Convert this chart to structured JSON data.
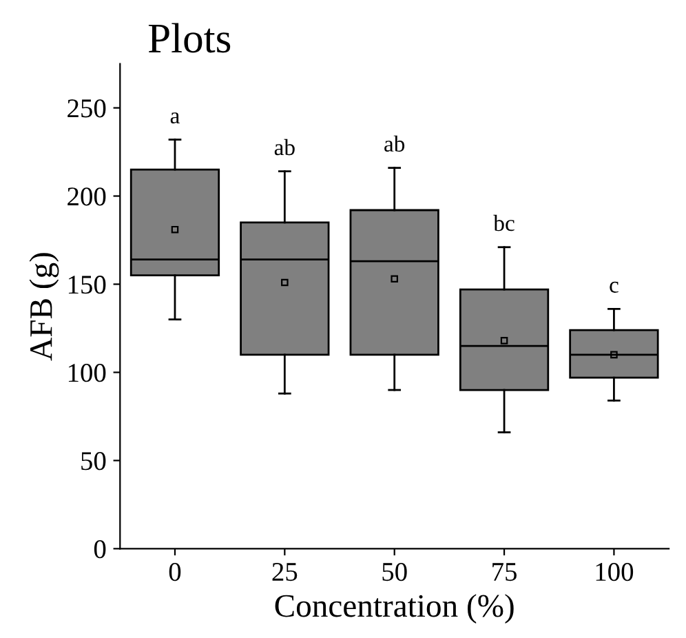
{
  "chart_data": {
    "type": "box",
    "title": "Plots",
    "xlabel": "Concentration (%)",
    "ylabel": "AFB (g)",
    "categories": [
      "0",
      "25",
      "50",
      "75",
      "100"
    ],
    "boxes": [
      {
        "low": 130,
        "q1": 155,
        "median": 164,
        "q3": 215,
        "high": 232,
        "mean": 181
      },
      {
        "low": 88,
        "q1": 110,
        "median": 164,
        "q3": 185,
        "high": 214,
        "mean": 151
      },
      {
        "low": 90,
        "q1": 110,
        "median": 163,
        "q3": 192,
        "high": 216,
        "mean": 153
      },
      {
        "low": 66,
        "q1": 90,
        "median": 115,
        "q3": 147,
        "high": 171,
        "mean": 118
      },
      {
        "low": 84,
        "q1": 97,
        "median": 110,
        "q3": 124,
        "high": 136,
        "mean": 110
      }
    ],
    "color": "#808080",
    "annotations": [
      "a",
      "ab",
      "ab",
      "bc",
      "c"
    ],
    "ylim": [
      0,
      275
    ],
    "yticks": [
      0,
      50,
      100,
      150,
      200,
      250
    ],
    "grid": false,
    "legend": false
  }
}
